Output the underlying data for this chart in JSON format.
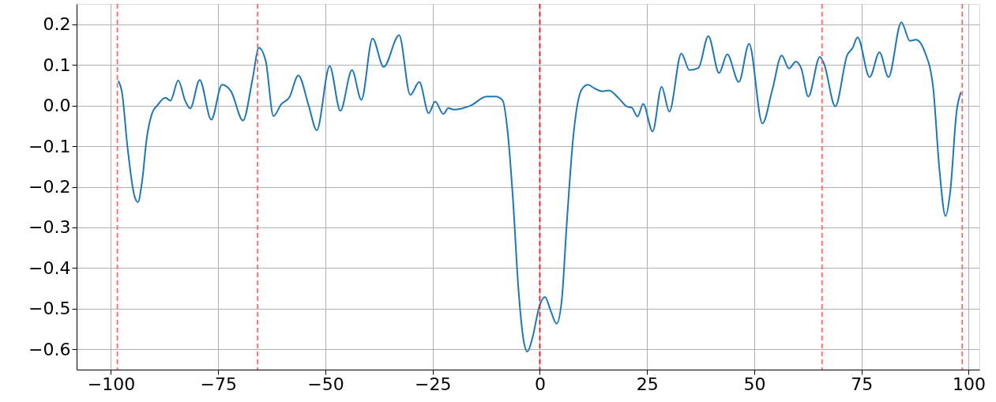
{
  "chart_data": {
    "type": "line",
    "xlim": [
      -108,
      102.5
    ],
    "ylim": [
      -0.65,
      0.25
    ],
    "xticks": [
      -100,
      -75,
      -50,
      -25,
      0,
      25,
      50,
      75,
      100
    ],
    "yticks": [
      {
        "value": 0.2,
        "label": "0.2"
      },
      {
        "value": 0.1,
        "label": "0.1"
      },
      {
        "value": 0,
        "label": "0.0"
      },
      {
        "value": -0.1,
        "label": "−0.1"
      },
      {
        "value": -0.2,
        "label": "−0.2"
      },
      {
        "value": -0.3,
        "label": "−0.3"
      },
      {
        "value": -0.4,
        "label": "−0.4"
      },
      {
        "value": -0.5,
        "label": "−0.5"
      },
      {
        "value": -0.6,
        "label": "−0.6"
      }
    ],
    "grid": true,
    "marker": "none",
    "line_style": "solid",
    "series": [
      {
        "color": "#1f77b4",
        "x": [
          -98.3,
          -97.4,
          -96.2,
          -94.6,
          -93.7,
          -92.8,
          -91.6,
          -90.4,
          -89.2,
          -87.3,
          -86.1,
          -84.3,
          -82.7,
          -81.5,
          -79.3,
          -76.6,
          -74.1,
          -72,
          -69.2,
          -67,
          -65.5,
          -63.9,
          -62.1,
          -60.3,
          -58.4,
          -56.3,
          -53.9,
          -52,
          -49,
          -46.5,
          -43.8,
          -41.6,
          -39,
          -36.4,
          -32.8,
          -30.2,
          -28.1,
          -25.9,
          -24.4,
          -22.5,
          -21.3,
          -20.1,
          -16.1,
          -12.4,
          -10.3,
          -8.7,
          -7.5,
          -6.3,
          -5.0,
          -3.8,
          -2.9,
          -1.7,
          -0.1,
          1.2,
          2.6,
          3.9,
          5.1,
          6.3,
          7.8,
          9.7,
          11.2,
          12.8,
          14.6,
          16.1,
          18.3,
          20.4,
          21.4,
          22.8,
          24.1,
          26.3,
          28.4,
          30.2,
          33.0,
          34.9,
          37.0,
          39.3,
          41.8,
          43.7,
          46.4,
          48.8,
          51.9,
          54.2,
          56.4,
          58.1,
          59.7,
          61.0,
          62.6,
          65.3,
          66.3,
          68.9,
          71.7,
          72.9,
          74.1,
          76.9,
          79.2,
          81.3,
          84.3,
          86.3,
          87.7,
          89.8,
          91.7,
          93.2,
          94.6,
          95.7,
          97.2,
          98.2
        ],
        "values": [
          0.061,
          0.031,
          -0.096,
          -0.219,
          -0.238,
          -0.192,
          -0.077,
          -0.019,
          0.0,
          0.019,
          0.012,
          0.062,
          0.012,
          -0.007,
          0.063,
          -0.035,
          0.051,
          0.035,
          -0.037,
          0.064,
          0.142,
          0.109,
          -0.026,
          0.003,
          0.02,
          0.074,
          0.0,
          -0.061,
          0.097,
          -0.013,
          0.087,
          0.014,
          0.165,
          0.095,
          0.173,
          0.026,
          0.058,
          -0.019,
          0.01,
          -0.021,
          -0.006,
          -0.01,
          0.0,
          0.022,
          0.022,
          0.013,
          -0.064,
          -0.224,
          -0.449,
          -0.577,
          -0.606,
          -0.571,
          -0.494,
          -0.471,
          -0.507,
          -0.537,
          -0.481,
          -0.288,
          -0.077,
          0.038,
          0.051,
          0.042,
          0.035,
          0.037,
          0.019,
          -0.003,
          -0.005,
          -0.027,
          0.004,
          -0.064,
          0.046,
          -0.015,
          0.128,
          0.087,
          0.093,
          0.171,
          0.08,
          0.126,
          0.058,
          0.152,
          -0.044,
          0.038,
          0.123,
          0.091,
          0.108,
          0.09,
          0.022,
          0.12,
          0.102,
          -0.002,
          0.125,
          0.141,
          0.168,
          0.07,
          0.131,
          0.07,
          0.205,
          0.159,
          0.162,
          0.131,
          0.045,
          -0.16,
          -0.272,
          -0.212,
          -0.013,
          0.033
        ]
      }
    ],
    "ref_lines": [
      {
        "axis": "x",
        "value": -98.5,
        "color": "#ff6666",
        "line_style": "dashed"
      },
      {
        "axis": "x",
        "value": -65.8,
        "color": "#ff6666",
        "line_style": "dashed"
      },
      {
        "axis": "x",
        "value": 0,
        "color": "#e31a1a",
        "line_style": "dashed"
      },
      {
        "axis": "x",
        "value": 65.8,
        "color": "#ff6666",
        "line_style": "dashed"
      },
      {
        "axis": "x",
        "value": 98.5,
        "color": "#ff6666",
        "line_style": "dashed"
      }
    ]
  }
}
